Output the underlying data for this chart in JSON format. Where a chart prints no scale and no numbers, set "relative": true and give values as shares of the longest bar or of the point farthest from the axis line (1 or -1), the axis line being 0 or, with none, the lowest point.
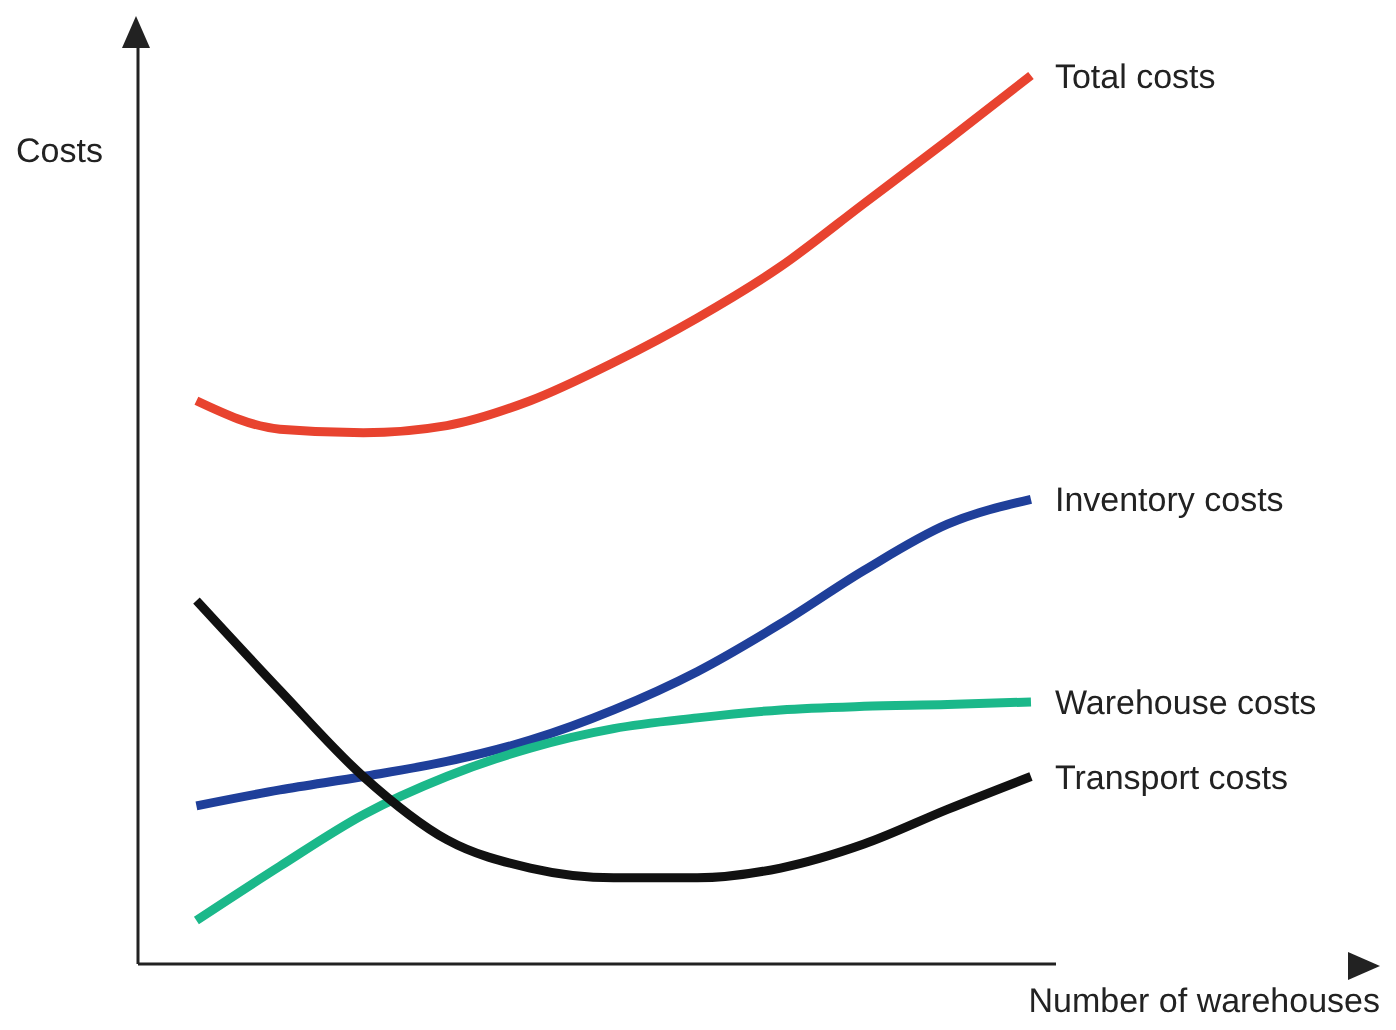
{
  "chart_data": {
    "type": "line",
    "relative": true,
    "xlabel": "Number of warehouses",
    "ylabel": "Costs",
    "categories": [
      null,
      null,
      null,
      null,
      null,
      null,
      null,
      null,
      null,
      null,
      null
    ],
    "marker": "none",
    "line_style": "solid",
    "series": [
      {
        "name": "Total costs",
        "color": "#e8432f",
        "values": [
          0.634,
          0.602,
          0.598,
          0.606,
          0.634,
          0.677,
          0.727,
          0.785,
          0.856,
          0.927,
          1
        ]
      },
      {
        "name": "Inventory costs",
        "color": "#1f3f9a",
        "values": [
          0.178,
          0.196,
          0.211,
          0.228,
          0.252,
          0.286,
          0.329,
          0.383,
          0.443,
          0.495,
          0.523
        ]
      },
      {
        "name": "Warehouse costs",
        "color": "#1bb88a",
        "values": [
          0.049,
          0.11,
          0.168,
          0.211,
          0.243,
          0.265,
          0.277,
          0.286,
          0.29,
          0.292,
          0.295
        ]
      },
      {
        "name": "Transport costs",
        "color": "#111111",
        "values": [
          0.409,
          0.308,
          0.211,
          0.14,
          0.108,
          0.097,
          0.097,
          0.108,
          0.135,
          0.174,
          0.211
        ]
      }
    ]
  }
}
